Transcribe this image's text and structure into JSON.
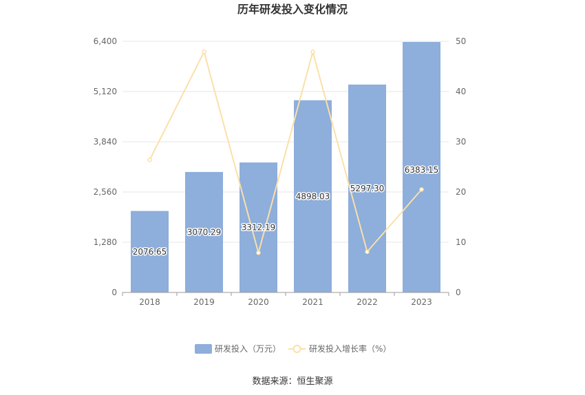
{
  "chart_data": {
    "type": "bar",
    "title": "历年研发投入变化情况",
    "categories": [
      "2018",
      "2019",
      "2020",
      "2021",
      "2022",
      "2023"
    ],
    "series": [
      {
        "name": "研发投入（万元）",
        "type": "bar",
        "axis": "left",
        "color": "#8eaedb",
        "values": [
          2076.65,
          3070.29,
          3312.19,
          4898.03,
          5297.3,
          6383.15
        ],
        "labels": [
          "2076.65",
          "3070.29",
          "3312.19",
          "4898.03",
          "5297.30",
          "6383.15"
        ]
      },
      {
        "name": "研发投入增长率（%）",
        "type": "line",
        "axis": "right",
        "color": "#fbe0a8",
        "values": [
          26.4,
          47.9,
          7.9,
          47.9,
          8.1,
          20.5
        ]
      }
    ],
    "y_left": {
      "min": 0,
      "max": 6400,
      "ticks": [
        0,
        1280,
        2560,
        3840,
        5120,
        6400
      ],
      "tick_labels": [
        "0",
        "1,280",
        "2,560",
        "3,840",
        "5,120",
        "6,400"
      ]
    },
    "y_right": {
      "min": 0,
      "max": 50,
      "ticks": [
        0,
        10,
        20,
        30,
        40,
        50
      ],
      "tick_labels": [
        "0",
        "10",
        "20",
        "30",
        "40",
        "50"
      ]
    },
    "grid": true,
    "legend_position": "bottom-center"
  },
  "legend": {
    "bar_label": "研发投入（万元）",
    "line_label": "研发投入增长率（%）"
  },
  "source": "数据来源：恒生聚源"
}
